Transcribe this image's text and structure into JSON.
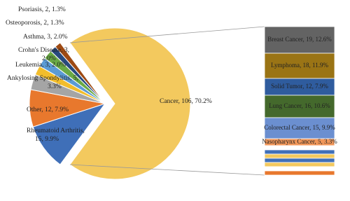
{
  "chart_data": {
    "type": "bar-of-pie",
    "pie": {
      "labels": [
        [
          "Cancer, 106, 70.2%"
        ],
        [
          "Rheumatoid Arthritis,",
          "15, 9.9%"
        ],
        [
          "Other, 12, 7.9%"
        ],
        [
          "Ankylosing Spondylitis, 5,",
          "3.3%"
        ],
        [
          "Leukemia, 3, 2.0%"
        ],
        [
          "Crohn's Disease, 3,",
          "2.0%"
        ],
        [
          "Asthma, 3, 2.0%"
        ],
        [
          "Osteoporosis, 2, 1.3%"
        ],
        [
          "Psoriasis, 2, 1.3%"
        ]
      ],
      "values": [
        106,
        15,
        12,
        5,
        3,
        3,
        3,
        2,
        2
      ],
      "colors": [
        "#f3c95e",
        "#3f6fb8",
        "#e8782d",
        "#a5a5a5",
        "#f2bd2c",
        "#5b9bd5",
        "#6aaa45",
        "#284a7e",
        "#9e4a13"
      ]
    },
    "bar": {
      "labels": [
        "Breast Cancer, 19, 12.6%",
        "Lymphoma, 18, 11.9%",
        "Solid Tumor, 12, 7.9%",
        "Lung Cancer, 16, 10.6%",
        "Colorectal Cancer, 15, 9.9%",
        "Nasopharynx Cancer, 5, 3.3%",
        null,
        null,
        null,
        null,
        null,
        null,
        null
      ],
      "values": [
        19,
        18,
        12,
        16,
        15,
        5,
        3,
        3,
        3,
        3,
        3,
        3,
        3
      ],
      "colors": [
        "#636363",
        "#9a7415",
        "#2f5c9e",
        "#44692c",
        "#6b8fd0",
        "#f1975a",
        "#ffffff",
        "#3f6fb8",
        "#f3c95e",
        "#3f6fb8",
        "#f3c95e",
        "#ffffff",
        "#e8782d"
      ]
    }
  }
}
